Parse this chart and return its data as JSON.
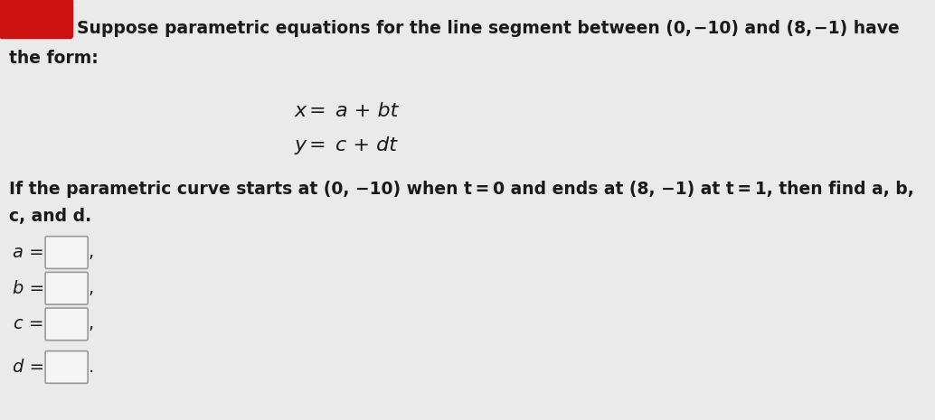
{
  "main_bg_color": "#eaeaea",
  "red_rect_color": "#cc1111",
  "text_color": "#1a1a1a",
  "box_color": "#f5f5f5",
  "box_edge_color": "#999999",
  "font_size_main": 13.5,
  "font_size_eq": 16,
  "font_size_label": 14,
  "line1": "Suppose parametric equations for the line segment between (0, −10) and (8, −1) have",
  "line2": "the form:",
  "eq_x_lhs": "x",
  "eq_x_eq": "=",
  "eq_x_rhs": "a + bt",
  "eq_y_lhs": "y",
  "eq_y_eq": "=",
  "eq_y_rhs": "c + dt",
  "body1": "If the parametric curve starts at (0, −10) when t = 0 and ends at (8, −1) at t = 1, then find a, b,",
  "body2": "c, and d.",
  "var_labels": [
    "a =",
    "b =",
    "c =",
    "d ="
  ],
  "comma_or_dot": [
    ",",
    ",",
    ",",
    "."
  ]
}
